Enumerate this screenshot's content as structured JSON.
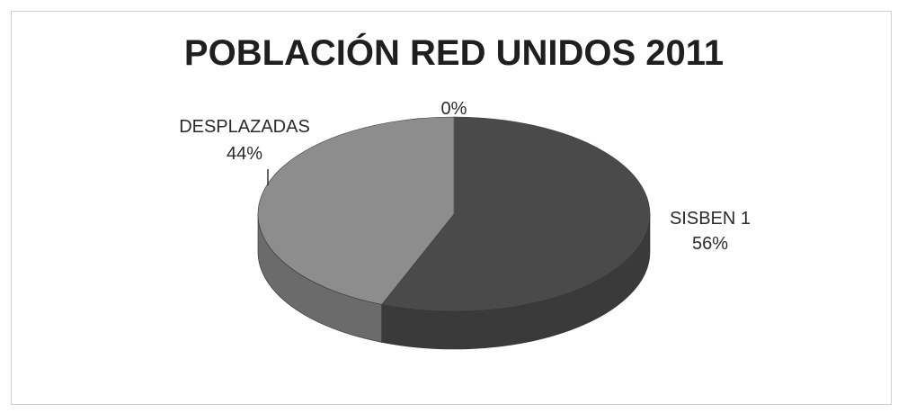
{
  "chart_data": {
    "type": "pie",
    "title": "POBLACIÓN RED UNIDOS 2011",
    "style": "3d",
    "slices": [
      {
        "label": "SISBEN 1",
        "value": 56,
        "value_label": "56%",
        "color": "#4a4a4a",
        "side_color": "#3a3a3a"
      },
      {
        "label": "DESPLAZADAS",
        "value": 44,
        "value_label": "44%",
        "color": "#8d8d8d",
        "side_color": "#6b6b6b"
      },
      {
        "label": "",
        "value": 0,
        "value_label": "0%",
        "color": "#b0b0b0",
        "side_color": "#909090"
      }
    ]
  }
}
